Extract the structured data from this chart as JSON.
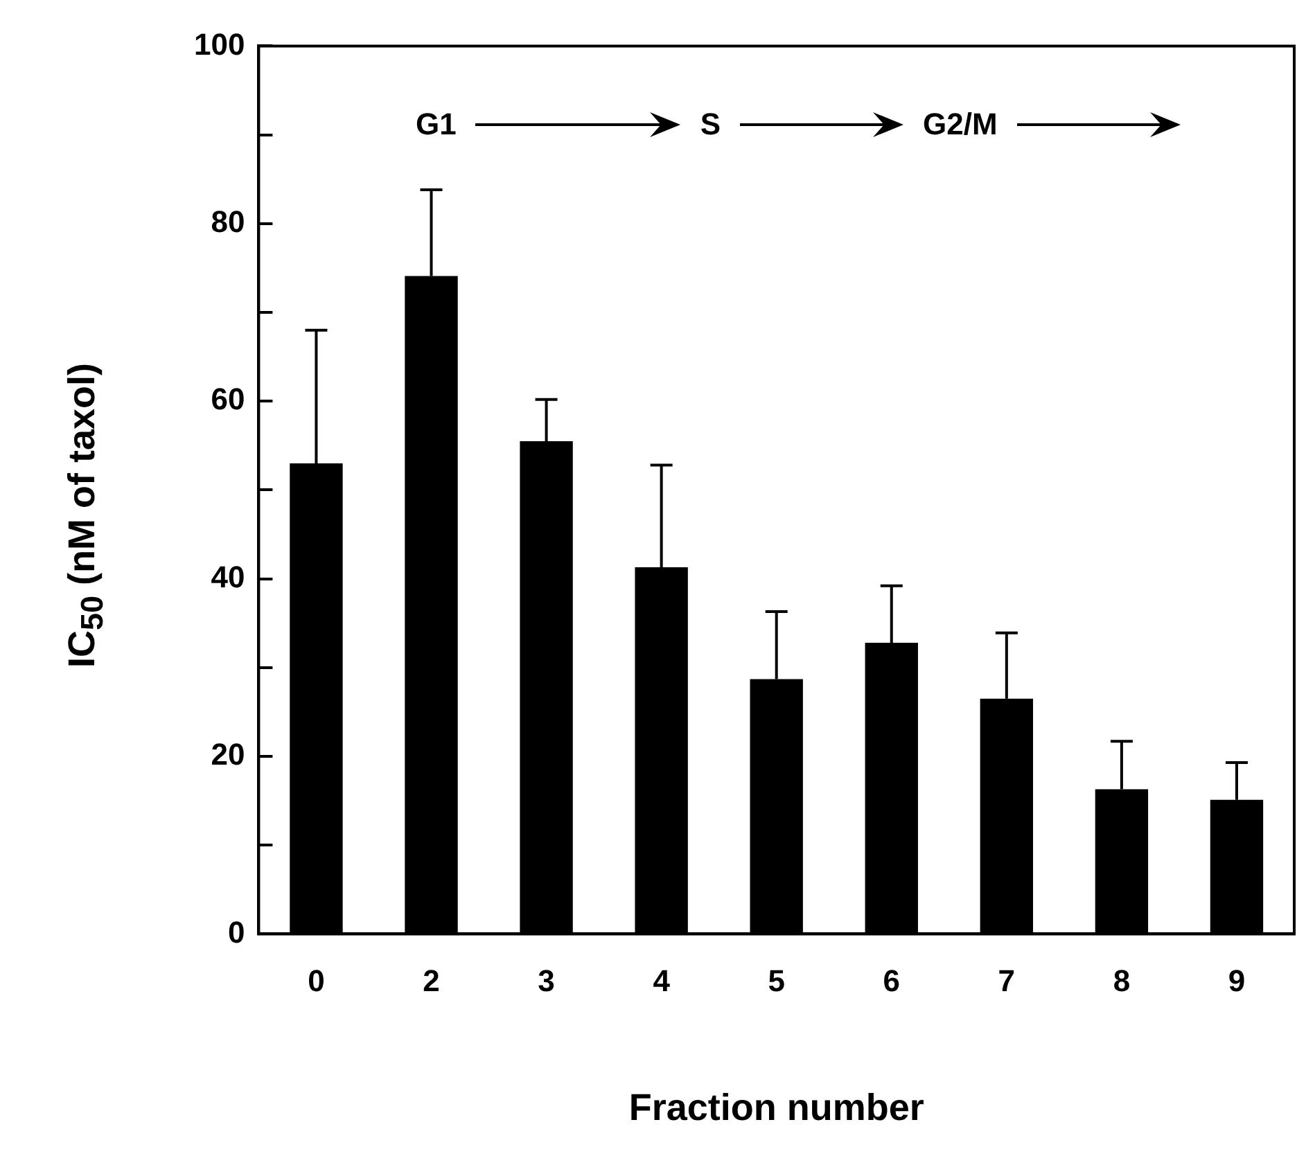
{
  "chart_data": {
    "type": "bar",
    "xlabel": "Fraction number",
    "ylabel": "IC$_{50}$ (nM of taxol)",
    "categories": [
      "0",
      "2",
      "3",
      "4",
      "5",
      "6",
      "7",
      "8",
      "9"
    ],
    "values": [
      53,
      74.1,
      55.5,
      41.3,
      28.7,
      32.8,
      26.5,
      16.3,
      15.1
    ],
    "errors": [
      [
        53,
        68
      ],
      [
        74.1,
        83.8
      ],
      [
        55.5,
        60.2
      ],
      [
        41.3,
        52.8
      ],
      [
        28.7,
        36.3
      ],
      [
        32.8,
        39.2
      ],
      [
        26.5,
        33.9
      ],
      [
        16.3,
        21.7
      ],
      [
        15.1,
        19.3
      ]
    ],
    "color": "#000000",
    "ylim": [
      0,
      100
    ],
    "yticks": [
      0,
      {
        "value": 10,
        "label": null
      },
      20,
      {
        "value": 30,
        "label": null
      },
      40,
      {
        "value": 50,
        "label": null
      },
      60,
      {
        "value": 70,
        "label": null
      },
      80,
      {
        "value": 90,
        "label": null
      },
      100
    ],
    "annotations": [
      "G1",
      "S",
      "G2/M"
    ],
    "grid": false,
    "legend": false
  }
}
